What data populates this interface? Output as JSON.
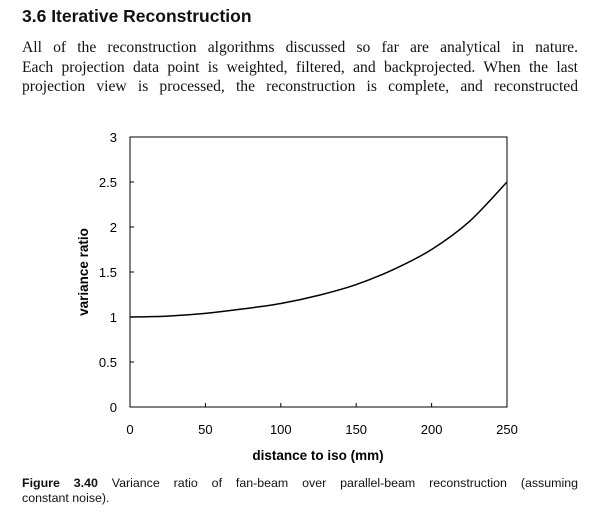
{
  "section": {
    "heading": "3.6 Iterative Reconstruction",
    "paragraph_lines": [
      "All of the reconstruction algorithms discussed so far are analytical in nature.",
      "Each projection data point is weighted, filtered, and backprojected. When the last",
      "projection view is processed, the reconstruction is complete, and reconstructed"
    ]
  },
  "chart_data": {
    "type": "line",
    "title": "",
    "xlabel": "distance to iso (mm)",
    "ylabel": "variance ratio",
    "xlim": [
      0,
      250
    ],
    "ylim": [
      0,
      3
    ],
    "x_ticks": [
      "0",
      "50",
      "100",
      "150",
      "200",
      "250"
    ],
    "y_ticks": [
      "0",
      "0.5",
      "1",
      "1.5",
      "2",
      "2.5",
      "3"
    ],
    "grid": false,
    "legend": "none",
    "series": [
      {
        "color": "#000000",
        "x": [
          0,
          25,
          50,
          75,
          100,
          125,
          150,
          175,
          200,
          225,
          250
        ],
        "y": [
          1.0,
          1.01,
          1.04,
          1.09,
          1.15,
          1.24,
          1.36,
          1.53,
          1.75,
          2.06,
          2.5
        ]
      }
    ]
  },
  "caption": {
    "label": "Figure 3.40",
    "text_line1": " Variance ratio of fan-beam over parallel-beam reconstruction (assuming",
    "text_line2": "constant noise)."
  }
}
